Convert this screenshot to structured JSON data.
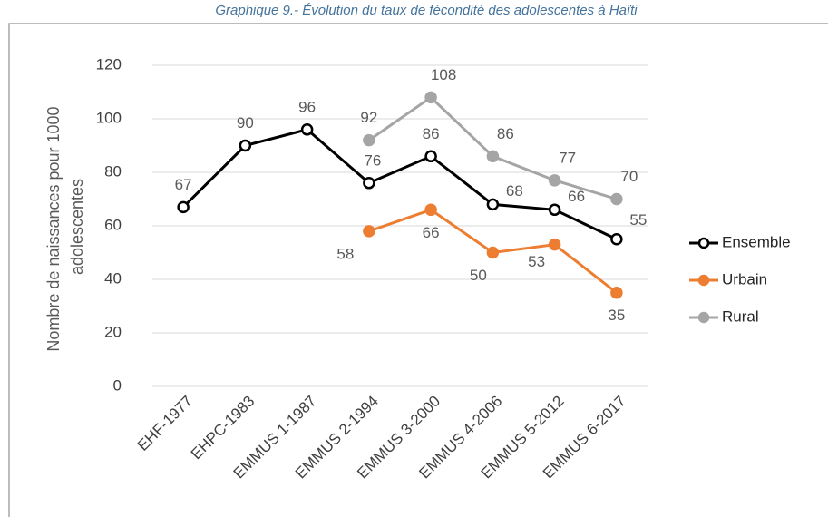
{
  "chart_data": {
    "type": "line",
    "title": "Graphique 9.- Évolution du taux de fécondité des adolescentes à Haïti",
    "ylabel": [
      "Nombre de naissances pour 1000",
      "adolescentes"
    ],
    "categories": [
      "EHF-1977",
      "EHPC-1983",
      "EMMUS 1-1987",
      "EMMUS 2-1994",
      "EMMUS 3-2000",
      "EMMUS 4-2006",
      "EMMUS 5-2012",
      "EMMUS 6-2017"
    ],
    "series": [
      {
        "name": "Ensemble",
        "color": "#000000",
        "values": [
          67,
          90,
          96,
          76,
          86,
          68,
          66,
          55
        ]
      },
      {
        "name": "Urbain",
        "color": "#ed7d31",
        "values": [
          null,
          null,
          null,
          58,
          66,
          50,
          53,
          35
        ]
      },
      {
        "name": "Rural",
        "color": "#a5a5a5",
        "values": [
          null,
          null,
          null,
          92,
          108,
          86,
          77,
          70
        ]
      }
    ],
    "ylim": [
      0,
      120
    ],
    "yticks": [
      0,
      20,
      40,
      60,
      80,
      100,
      120
    ],
    "grid": true,
    "legend": "right"
  }
}
